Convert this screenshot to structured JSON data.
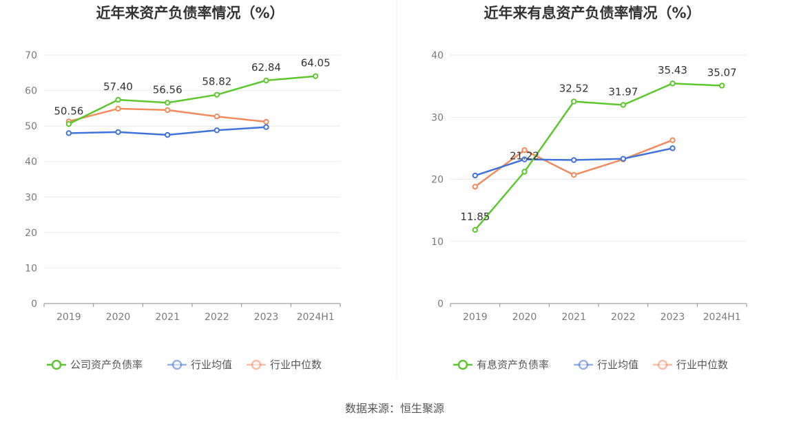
{
  "footer": "数据来源：恒生聚源",
  "chart_data": [
    {
      "type": "line",
      "title": "近年来资产负债率情况（%）",
      "categories": [
        "2019",
        "2020",
        "2021",
        "2022",
        "2023",
        "2024H1"
      ],
      "ylim": [
        0,
        70
      ],
      "yticks": [
        0,
        10,
        20,
        30,
        40,
        50,
        60,
        70
      ],
      "grid": true,
      "legend_position": "bottom",
      "series": [
        {
          "name": "公司资产负债率",
          "color": "#5cc72d",
          "values": [
            50.56,
            57.4,
            56.56,
            58.82,
            62.84,
            64.05
          ],
          "labels": [
            "50.56",
            "57.40",
            "56.56",
            "58.82",
            "62.84",
            "64.05"
          ]
        },
        {
          "name": "行业均值",
          "color": "#3f73d9",
          "values": [
            48.0,
            48.3,
            47.5,
            48.8,
            49.7,
            null
          ]
        },
        {
          "name": "行业中位数",
          "color": "#f28a5c",
          "values": [
            51.3,
            54.9,
            54.5,
            52.7,
            51.2,
            null
          ]
        }
      ]
    },
    {
      "type": "line",
      "title": "近年来有息资产负债率情况（%）",
      "categories": [
        "2019",
        "2020",
        "2021",
        "2022",
        "2023",
        "2024H1"
      ],
      "ylim": [
        0,
        40
      ],
      "yticks": [
        0,
        10,
        20,
        30,
        40
      ],
      "grid": true,
      "legend_position": "bottom",
      "series": [
        {
          "name": "有息资产负债率",
          "color": "#5cc72d",
          "values": [
            11.85,
            21.22,
            32.52,
            31.97,
            35.43,
            35.07
          ],
          "labels": [
            "11.85",
            "21.22",
            "32.52",
            "31.97",
            "35.43",
            "35.07"
          ]
        },
        {
          "name": "行业均值",
          "color": "#3f73d9",
          "values": [
            20.6,
            23.2,
            23.1,
            23.3,
            25.0,
            null
          ]
        },
        {
          "name": "行业中位数",
          "color": "#f28a5c",
          "values": [
            18.8,
            24.7,
            20.7,
            23.2,
            26.3,
            null
          ]
        }
      ]
    }
  ]
}
